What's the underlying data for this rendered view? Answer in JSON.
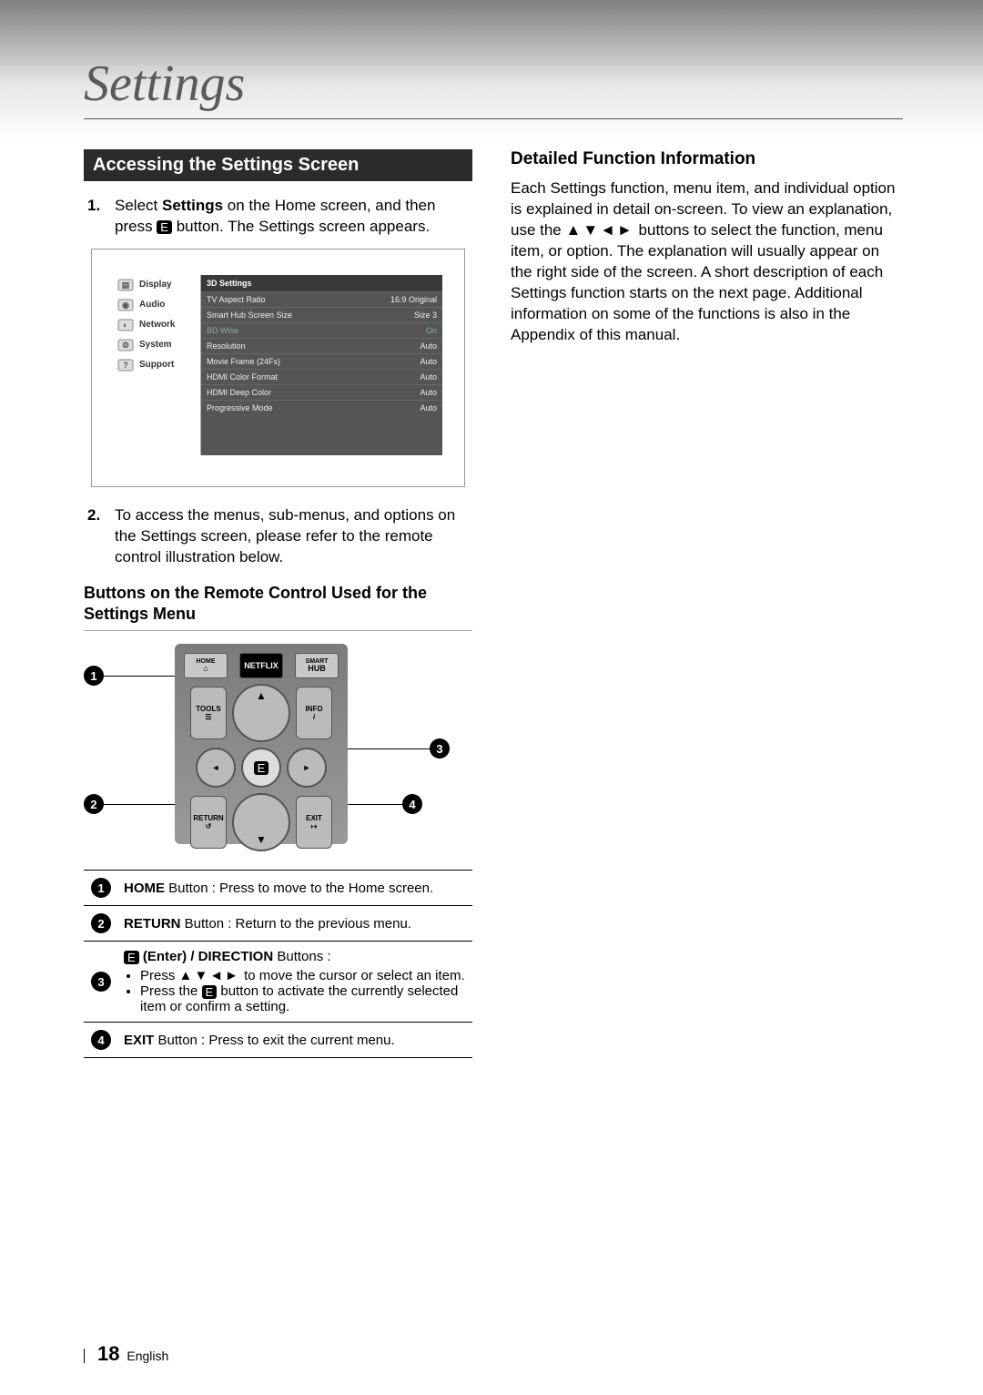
{
  "page": {
    "title": "Settings",
    "page_number": "18",
    "lang": "English"
  },
  "left": {
    "section_bar": "Accessing the Settings Screen",
    "step1_n": "1.",
    "step1_a": "Select ",
    "step1_b": "Settings",
    "step1_c": " on the Home screen, and then press ",
    "step1_d": " button. The Settings screen appears.",
    "step2_n": "2.",
    "step2_text": "To access the menus, sub-menus, and options on the Settings screen, please refer to the remote control illustration below.",
    "subhead_remote": "Buttons on the Remote Control Used for the Settings Menu"
  },
  "settings_menu": {
    "side": [
      "Display",
      "Audio",
      "Network",
      "System",
      "Support"
    ],
    "rows": [
      {
        "k": "3D Settings",
        "v": ""
      },
      {
        "k": "TV Aspect Ratio",
        "v": "16:9 Original"
      },
      {
        "k": "Smart Hub Screen Size",
        "v": "Size 3"
      },
      {
        "k": "BD Wise",
        "v": "On",
        "dim": true
      },
      {
        "k": "Resolution",
        "v": "Auto"
      },
      {
        "k": "Movie Frame (24Fs)",
        "v": "Auto"
      },
      {
        "k": "HDMI Color Format",
        "v": "Auto"
      },
      {
        "k": "HDMI Deep Color",
        "v": "Auto"
      },
      {
        "k": "Progressive Mode",
        "v": "Auto"
      }
    ]
  },
  "remote": {
    "row1": {
      "l": "HOME",
      "m": "NETFLIX",
      "r": "SMART HUB"
    },
    "row2": {
      "l": "TOOLS",
      "r": "INFO"
    },
    "row3": {
      "l": "RETURN",
      "r": "EXIT"
    },
    "badges": {
      "b1": "1",
      "b2": "2",
      "b3": "3",
      "b4": "4"
    },
    "enter_center": "E"
  },
  "table": {
    "r1": {
      "num": "1",
      "bold": "HOME",
      "rest": " Button : Press to move to the Home screen."
    },
    "r2": {
      "num": "2",
      "bold": "RETURN",
      "rest": " Button : Return to the previous menu."
    },
    "r3": {
      "num": "3",
      "title_bold": " (Enter) / DIRECTION",
      "title_rest": " Buttons :",
      "li1_a": "Press ",
      "li1_arrows": "▲▼◄►",
      "li1_b": " to move the cursor or select an item.",
      "li2_a": "Press the ",
      "li2_b": " button to activate the currently selected item or confirm a setting."
    },
    "r4": {
      "num": "4",
      "bold": "EXIT",
      "rest": " Button : Press to exit the current menu."
    }
  },
  "right": {
    "head": "Detailed Function Information",
    "body_a": "Each Settings function, menu item, and individual option is explained in detail on-screen. To view an explanation, use the ",
    "arrows": "▲▼◄►",
    "body_b": " buttons to select the function, menu item, or option. The explanation will usually appear on the right side of the screen. A short description of each Settings function starts on the next page. Additional information on some of the functions is also in the Appendix of this manual."
  }
}
